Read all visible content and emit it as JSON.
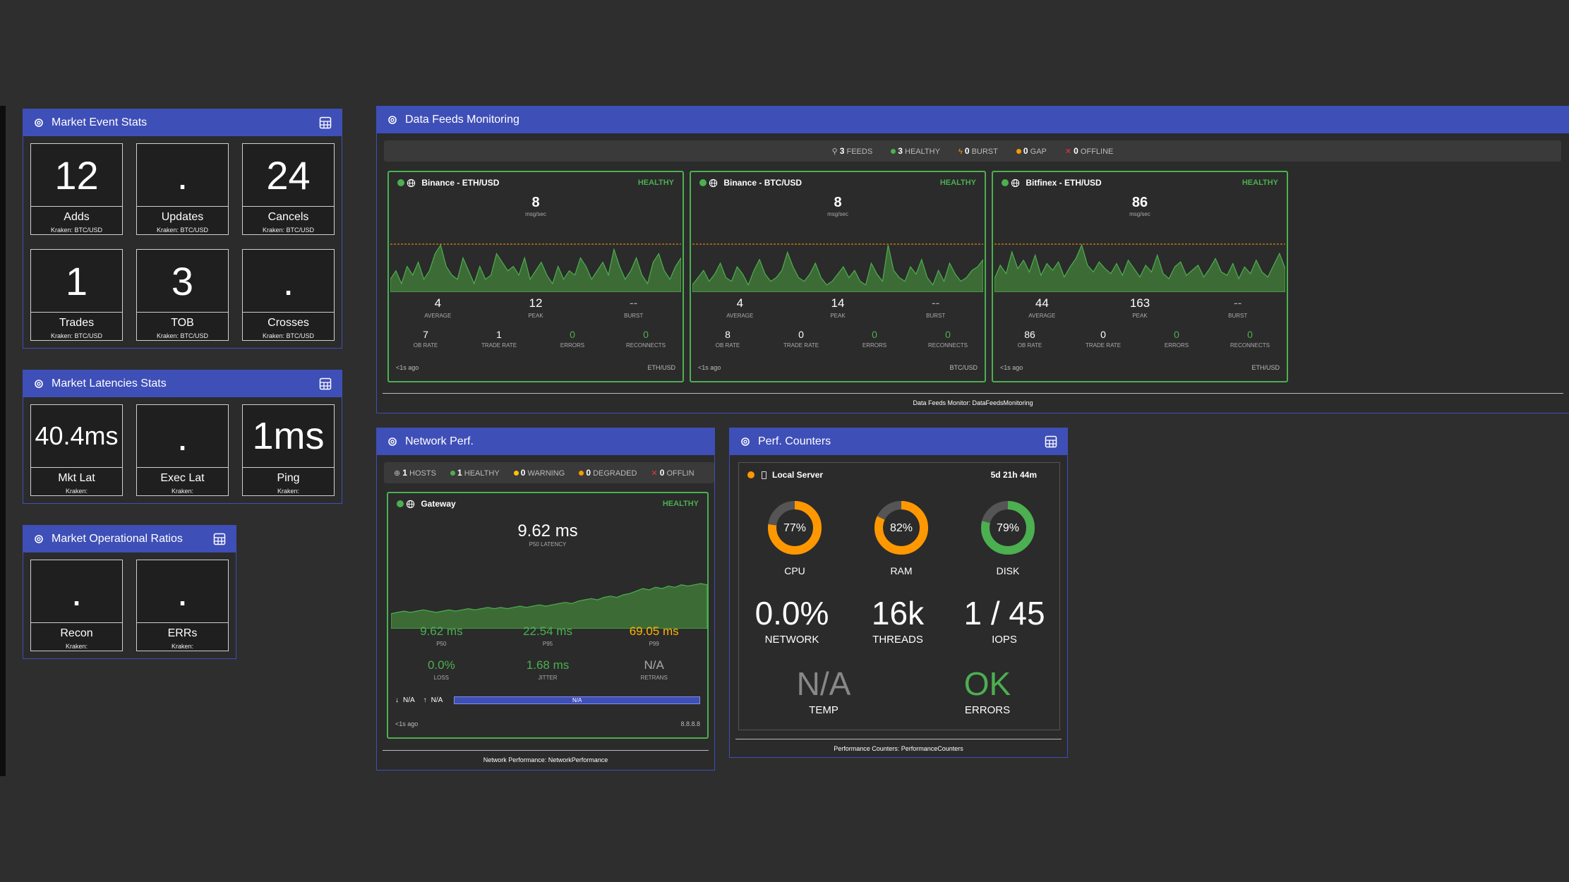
{
  "market_event_stats": {
    "title": "Market Event Stats",
    "tiles": [
      {
        "value": "12",
        "label": "Adds",
        "sub": "Kraken: BTC/USD"
      },
      {
        "value": ".",
        "label": "Updates",
        "sub": "Kraken: BTC/USD"
      },
      {
        "value": "24",
        "label": "Cancels",
        "sub": "Kraken: BTC/USD"
      },
      {
        "value": "1",
        "label": "Trades",
        "sub": "Kraken: BTC/USD"
      },
      {
        "value": "3",
        "label": "TOB",
        "sub": "Kraken: BTC/USD"
      },
      {
        "value": ".",
        "label": "Crosses",
        "sub": "Kraken: BTC/USD"
      }
    ]
  },
  "market_latencies_stats": {
    "title": "Market Latencies Stats",
    "tiles": [
      {
        "value": "40.4ms",
        "label": "Mkt Lat",
        "sub": "Kraken:"
      },
      {
        "value": ".",
        "label": "Exec Lat",
        "sub": "Kraken:"
      },
      {
        "value": "1ms",
        "label": "Ping",
        "sub": "Kraken:"
      }
    ]
  },
  "market_operational_ratios": {
    "title": "Market Operational Ratios",
    "tiles": [
      {
        "value": ".",
        "label": "Recon",
        "sub": "Kraken:"
      },
      {
        "value": ".",
        "label": "ERRs",
        "sub": "Kraken:"
      }
    ]
  },
  "data_feeds": {
    "title": "Data Feeds Monitoring",
    "summary": {
      "feeds": "3",
      "feeds_label": "FEEDS",
      "healthy": "3",
      "healthy_label": "HEALTHY",
      "burst": "0",
      "burst_label": "BURST",
      "gap": "0",
      "gap_label": "GAP",
      "offline": "0",
      "offline_label": "OFFLINE"
    },
    "feeds": [
      {
        "name": "Binance - ETH/USD",
        "status": "HEALTHY",
        "rate": "8",
        "unit": "msg/sec",
        "average": "4",
        "peak": "12",
        "burst": "--",
        "average_label": "AVERAGE",
        "peak_label": "PEAK",
        "burst_label": "BURST",
        "ob_rate": "7",
        "trade_rate": "1",
        "errors": "0",
        "reconnects": "0",
        "ob_rate_label": "OB RATE",
        "trade_rate_label": "TRADE RATE",
        "errors_label": "ERRORS",
        "reconnects_label": "RECONNECTS",
        "age": "<1s ago",
        "pair": "ETH/USD",
        "series": [
          3,
          5,
          2,
          6,
          4,
          7,
          3,
          5,
          9,
          11,
          6,
          4,
          3,
          8,
          5,
          2,
          6,
          3,
          4,
          9,
          7,
          5,
          6,
          4,
          8,
          3,
          5,
          7,
          4,
          2,
          6,
          3,
          5,
          4,
          8,
          6,
          3,
          5,
          7,
          4,
          10,
          6,
          3,
          5,
          8,
          4,
          2,
          7,
          9,
          5,
          3,
          6,
          8
        ]
      },
      {
        "name": "Binance - BTC/USD",
        "status": "HEALTHY",
        "rate": "8",
        "unit": "msg/sec",
        "average": "4",
        "peak": "14",
        "burst": "--",
        "average_label": "AVERAGE",
        "peak_label": "PEAK",
        "burst_label": "BURST",
        "ob_rate": "8",
        "trade_rate": "0",
        "errors": "0",
        "reconnects": "0",
        "ob_rate_label": "OB RATE",
        "trade_rate_label": "TRADE RATE",
        "errors_label": "ERRORS",
        "reconnects_label": "RECONNECTS",
        "age": "<1s ago",
        "pair": "BTC/USD",
        "series": [
          2,
          4,
          6,
          3,
          5,
          8,
          4,
          3,
          7,
          5,
          2,
          6,
          9,
          5,
          3,
          4,
          6,
          11,
          7,
          4,
          3,
          5,
          8,
          4,
          2,
          3,
          5,
          7,
          4,
          6,
          3,
          2,
          8,
          5,
          3,
          13,
          6,
          4,
          3,
          7,
          5,
          9,
          4,
          2,
          6,
          3,
          8,
          5,
          3,
          4,
          6,
          7,
          9
        ]
      },
      {
        "name": "Bitfinex - ETH/USD",
        "status": "HEALTHY",
        "rate": "86",
        "unit": "msg/sec",
        "average": "44",
        "peak": "163",
        "burst": "--",
        "average_label": "AVERAGE",
        "peak_label": "PEAK",
        "burst_label": "BURST",
        "ob_rate": "86",
        "trade_rate": "0",
        "errors": "0",
        "reconnects": "0",
        "ob_rate_label": "OB RATE",
        "trade_rate_label": "TRADE RATE",
        "errors_label": "ERRORS",
        "reconnects_label": "RECONNECTS",
        "age": "<1s ago",
        "pair": "ETH/USD",
        "series": [
          40,
          80,
          55,
          120,
          70,
          95,
          60,
          110,
          50,
          85,
          65,
          90,
          45,
          75,
          100,
          140,
          80,
          60,
          90,
          70,
          55,
          85,
          50,
          95,
          70,
          45,
          80,
          60,
          110,
          55,
          40,
          75,
          90,
          50,
          65,
          80,
          45,
          70,
          100,
          60,
          50,
          85,
          40,
          75,
          55,
          95,
          60,
          45,
          80,
          115,
          70
        ]
      }
    ],
    "footer": "Data Feeds Monitor: DataFeedsMonitoring"
  },
  "network_perf": {
    "title": "Network Perf.",
    "summary": {
      "hosts": "1",
      "hosts_label": "HOSTS",
      "healthy": "1",
      "healthy_label": "HEALTHY",
      "warning": "0",
      "warning_label": "WARNING",
      "degraded": "0",
      "degraded_label": "DEGRADED",
      "offline": "0",
      "offline_label": "OFFLIN"
    },
    "host": {
      "name": "Gateway",
      "status": "HEALTHY",
      "latency": "9.62 ms",
      "latency_label": "P50 LATENCY",
      "p50": "9.62 ms",
      "p95": "22.54 ms",
      "p99": "69.05 ms",
      "p50_label": "P50",
      "p95_label": "P95",
      "p99_label": "P99",
      "loss": "0.0%",
      "jitter": "1.68 ms",
      "retrans": "N/A",
      "loss_label": "LOSS",
      "jitter_label": "JITTER",
      "retrans_label": "RETRANS",
      "down": "N/A",
      "up": "N/A",
      "bar_text": "N/A",
      "age": "<1s ago",
      "ip": "8.8.8.8",
      "series": [
        38,
        37,
        36,
        37,
        36,
        35,
        36,
        37,
        36,
        35,
        36,
        35,
        34,
        35,
        34,
        33,
        34,
        33,
        34,
        33,
        32,
        33,
        32,
        31,
        32,
        31,
        30,
        29,
        30,
        28,
        27,
        26,
        27,
        25,
        24,
        25,
        23,
        22,
        20,
        18,
        19,
        17,
        18,
        16,
        17,
        15,
        16,
        15,
        14,
        15
      ]
    },
    "footer": "Network Performance: NetworkPerformance"
  },
  "perf_counters": {
    "title": "Perf. Counters",
    "server": "Local Server",
    "uptime": "5d 21h 44m",
    "donuts": [
      {
        "label": "CPU",
        "value": 77,
        "text": "77%",
        "color": "#ff9800"
      },
      {
        "label": "RAM",
        "value": 82,
        "text": "82%",
        "color": "#ff9800"
      },
      {
        "label": "DISK",
        "value": 79,
        "text": "79%",
        "color": "#4caf50"
      }
    ],
    "metrics": [
      {
        "value": "0.0%",
        "label": "NETWORK"
      },
      {
        "value": "16k",
        "label": "THREADS"
      },
      {
        "value": "1 / 45",
        "label": "IOPS"
      }
    ],
    "temp": {
      "value": "N/A",
      "label": "TEMP"
    },
    "errors": {
      "value": "OK",
      "label": "ERRORS"
    },
    "footer": "Performance Counters: PerformanceCounters"
  },
  "colors": {
    "header": "#3f4fb8",
    "healthy": "#4caf50",
    "warning": "#ff9800",
    "error": "#e53935"
  }
}
